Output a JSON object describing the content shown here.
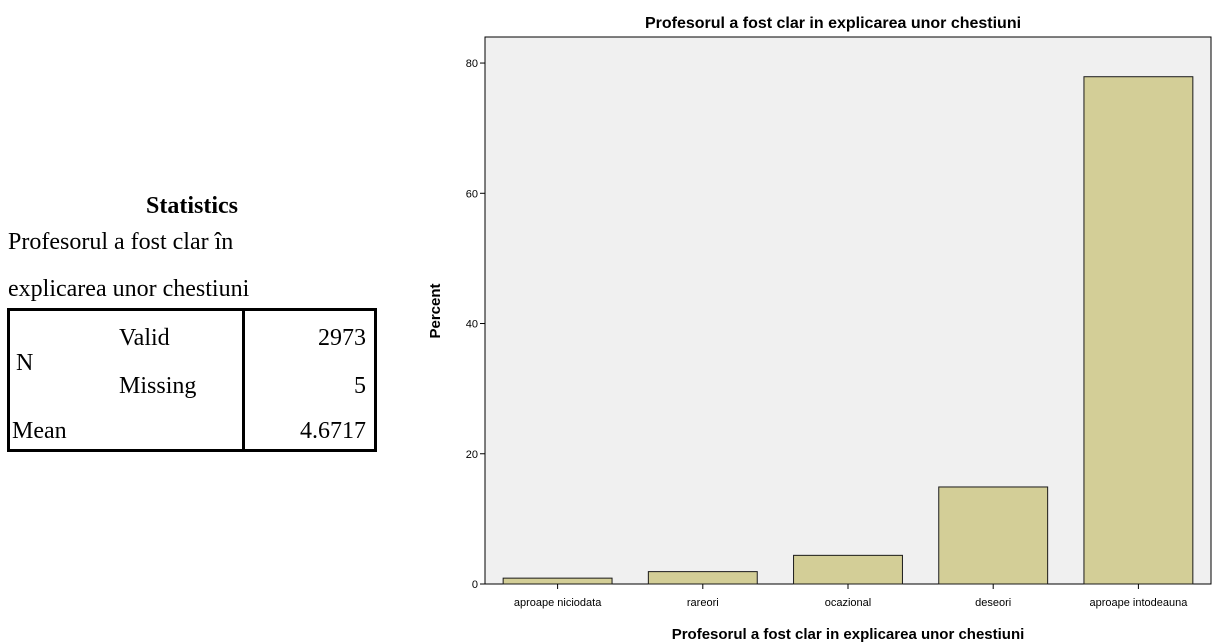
{
  "statistics": {
    "title": "Statistics",
    "variable_line1": "Profesorul a fost clar în",
    "variable_line2": "explicarea unor chestiuni",
    "n_label": "N",
    "valid_label": "Valid",
    "valid_value": "2973",
    "missing_label": "Missing",
    "missing_value": "5",
    "mean_label": "Mean",
    "mean_value": "4.6717"
  },
  "chart_data": {
    "type": "bar",
    "title": "Profesorul a fost clar in explicarea unor chestiuni",
    "xlabel": "Profesorul a fost clar in explicarea unor chestiuni",
    "ylabel": "Percent",
    "categories": [
      "aproape niciodata",
      "rareori",
      "ocazional",
      "deseori",
      "aproape intodeauna"
    ],
    "values": [
      0.9,
      1.9,
      4.4,
      14.9,
      77.9
    ],
    "ylim": [
      0,
      84
    ],
    "yticks": [
      0,
      20,
      40,
      60,
      80
    ],
    "grid": false,
    "colors": {
      "plot_background": "#f0f0f0",
      "bar_fill": "#d3ce97",
      "bar_stroke": "#1a1a1a"
    }
  }
}
